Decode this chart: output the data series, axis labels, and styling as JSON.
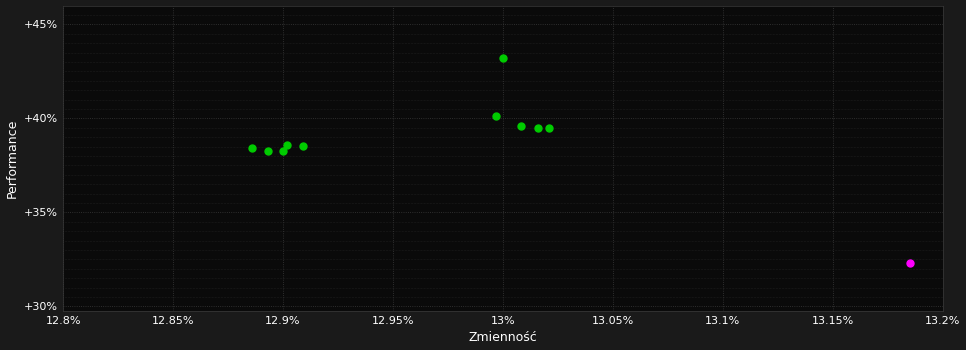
{
  "background_color": "#1a1a1a",
  "plot_bg_color": "#0a0a0a",
  "grid_color": "#3a3a3a",
  "text_color": "#ffffff",
  "xlabel": "Zmienność",
  "ylabel": "Performance",
  "xlim": [
    0.128,
    0.132
  ],
  "ylim": [
    0.2975,
    0.46
  ],
  "xticks": [
    0.128,
    0.1285,
    0.129,
    0.1295,
    0.13,
    0.1305,
    0.131,
    0.1315,
    0.132
  ],
  "yticks": [
    0.3,
    0.35,
    0.4,
    0.45
  ],
  "minor_yticks": [
    0.305,
    0.31,
    0.315,
    0.32,
    0.325,
    0.33,
    0.335,
    0.34,
    0.345,
    0.355,
    0.36,
    0.365,
    0.37,
    0.375,
    0.38,
    0.385,
    0.39,
    0.395,
    0.405,
    0.41,
    0.415,
    0.42,
    0.425,
    0.43,
    0.435,
    0.44,
    0.445,
    0.455
  ],
  "green_points": [
    [
      0.12886,
      0.384
    ],
    [
      0.12893,
      0.3828
    ],
    [
      0.129,
      0.3824
    ],
    [
      0.12902,
      0.3858
    ],
    [
      0.12909,
      0.3852
    ],
    [
      0.12997,
      0.401
    ],
    [
      0.13,
      0.432
    ],
    [
      0.13008,
      0.3958
    ],
    [
      0.13016,
      0.395
    ],
    [
      0.13021,
      0.3946
    ]
  ],
  "magenta_points": [
    [
      0.13185,
      0.323
    ]
  ],
  "green_color": "#00cc00",
  "magenta_color": "#ff00ff",
  "marker_size": 5
}
